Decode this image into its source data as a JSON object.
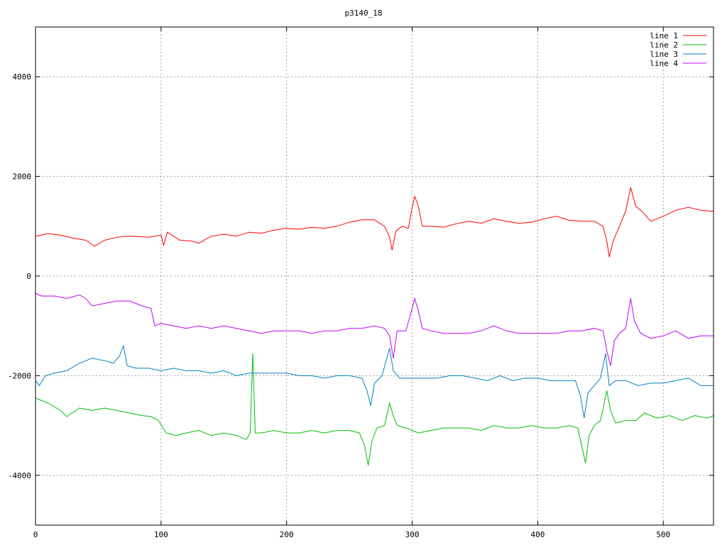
{
  "chart_data": {
    "type": "line",
    "title": "p3140_18",
    "xlabel": "",
    "ylabel": "",
    "xlim": [
      0,
      540
    ],
    "ylim": [
      -5000,
      5000
    ],
    "xticks": [
      0,
      100,
      200,
      300,
      400,
      500
    ],
    "yticks": [
      -4000,
      -2000,
      0,
      2000,
      4000
    ],
    "grid": true,
    "legend_position": "top-right",
    "series": [
      {
        "name": "line 1",
        "color": "#ff0000",
        "points": [
          [
            0,
            800
          ],
          [
            10,
            850
          ],
          [
            20,
            820
          ],
          [
            30,
            760
          ],
          [
            40,
            720
          ],
          [
            47,
            600
          ],
          [
            55,
            720
          ],
          [
            65,
            780
          ],
          [
            75,
            800
          ],
          [
            90,
            780
          ],
          [
            100,
            820
          ],
          [
            102,
            620
          ],
          [
            105,
            880
          ],
          [
            115,
            720
          ],
          [
            125,
            700
          ],
          [
            130,
            660
          ],
          [
            140,
            800
          ],
          [
            150,
            840
          ],
          [
            160,
            800
          ],
          [
            170,
            880
          ],
          [
            180,
            860
          ],
          [
            190,
            920
          ],
          [
            200,
            960
          ],
          [
            210,
            940
          ],
          [
            220,
            980
          ],
          [
            230,
            960
          ],
          [
            240,
            1000
          ],
          [
            250,
            1080
          ],
          [
            260,
            1130
          ],
          [
            270,
            1130
          ],
          [
            278,
            1000
          ],
          [
            282,
            780
          ],
          [
            284,
            520
          ],
          [
            287,
            900
          ],
          [
            292,
            1000
          ],
          [
            297,
            960
          ],
          [
            300,
            1380
          ],
          [
            302,
            1600
          ],
          [
            305,
            1400
          ],
          [
            308,
            1000
          ],
          [
            315,
            1000
          ],
          [
            325,
            980
          ],
          [
            335,
            1050
          ],
          [
            345,
            1100
          ],
          [
            355,
            1060
          ],
          [
            365,
            1150
          ],
          [
            375,
            1100
          ],
          [
            385,
            1060
          ],
          [
            395,
            1080
          ],
          [
            405,
            1150
          ],
          [
            415,
            1200
          ],
          [
            425,
            1120
          ],
          [
            435,
            1100
          ],
          [
            445,
            1100
          ],
          [
            452,
            1000
          ],
          [
            455,
            700
          ],
          [
            457,
            380
          ],
          [
            460,
            700
          ],
          [
            465,
            1000
          ],
          [
            470,
            1300
          ],
          [
            474,
            1780
          ],
          [
            478,
            1400
          ],
          [
            483,
            1300
          ],
          [
            490,
            1100
          ],
          [
            500,
            1200
          ],
          [
            510,
            1320
          ],
          [
            520,
            1380
          ],
          [
            530,
            1320
          ],
          [
            540,
            1300
          ]
        ]
      },
      {
        "name": "line 2",
        "color": "#00c000",
        "points": [
          [
            0,
            -2450
          ],
          [
            10,
            -2550
          ],
          [
            20,
            -2700
          ],
          [
            25,
            -2820
          ],
          [
            35,
            -2650
          ],
          [
            45,
            -2700
          ],
          [
            55,
            -2650
          ],
          [
            65,
            -2700
          ],
          [
            75,
            -2750
          ],
          [
            85,
            -2800
          ],
          [
            92,
            -2820
          ],
          [
            98,
            -2900
          ],
          [
            104,
            -3150
          ],
          [
            112,
            -3200
          ],
          [
            120,
            -3150
          ],
          [
            130,
            -3100
          ],
          [
            140,
            -3200
          ],
          [
            150,
            -3150
          ],
          [
            160,
            -3200
          ],
          [
            168,
            -3280
          ],
          [
            171,
            -3150
          ],
          [
            173,
            -1550
          ],
          [
            175,
            -3150
          ],
          [
            180,
            -3150
          ],
          [
            190,
            -3100
          ],
          [
            200,
            -3150
          ],
          [
            210,
            -3150
          ],
          [
            220,
            -3100
          ],
          [
            230,
            -3150
          ],
          [
            240,
            -3100
          ],
          [
            250,
            -3100
          ],
          [
            258,
            -3150
          ],
          [
            262,
            -3400
          ],
          [
            265,
            -3800
          ],
          [
            268,
            -3300
          ],
          [
            272,
            -3050
          ],
          [
            278,
            -3000
          ],
          [
            282,
            -2550
          ],
          [
            285,
            -2800
          ],
          [
            288,
            -3000
          ],
          [
            295,
            -3050
          ],
          [
            305,
            -3150
          ],
          [
            315,
            -3100
          ],
          [
            325,
            -3050
          ],
          [
            335,
            -3050
          ],
          [
            345,
            -3050
          ],
          [
            355,
            -3100
          ],
          [
            365,
            -3000
          ],
          [
            375,
            -3050
          ],
          [
            385,
            -3050
          ],
          [
            395,
            -3000
          ],
          [
            405,
            -3050
          ],
          [
            415,
            -3050
          ],
          [
            425,
            -3000
          ],
          [
            432,
            -3050
          ],
          [
            435,
            -3400
          ],
          [
            438,
            -3750
          ],
          [
            441,
            -3200
          ],
          [
            445,
            -3000
          ],
          [
            450,
            -2900
          ],
          [
            455,
            -2300
          ],
          [
            458,
            -2700
          ],
          [
            462,
            -2950
          ],
          [
            470,
            -2900
          ],
          [
            478,
            -2900
          ],
          [
            485,
            -2750
          ],
          [
            495,
            -2850
          ],
          [
            505,
            -2800
          ],
          [
            515,
            -2900
          ],
          [
            525,
            -2800
          ],
          [
            535,
            -2850
          ],
          [
            540,
            -2800
          ]
        ]
      },
      {
        "name": "line 3",
        "color": "#0080c0",
        "points": [
          [
            0,
            -2100
          ],
          [
            3,
            -2200
          ],
          [
            8,
            -2000
          ],
          [
            15,
            -1950
          ],
          [
            25,
            -1900
          ],
          [
            35,
            -1750
          ],
          [
            45,
            -1650
          ],
          [
            55,
            -1700
          ],
          [
            62,
            -1750
          ],
          [
            67,
            -1600
          ],
          [
            70,
            -1400
          ],
          [
            73,
            -1800
          ],
          [
            80,
            -1850
          ],
          [
            90,
            -1850
          ],
          [
            100,
            -1900
          ],
          [
            110,
            -1850
          ],
          [
            120,
            -1900
          ],
          [
            130,
            -1900
          ],
          [
            140,
            -1950
          ],
          [
            150,
            -1900
          ],
          [
            160,
            -2000
          ],
          [
            170,
            -1950
          ],
          [
            180,
            -1950
          ],
          [
            190,
            -1950
          ],
          [
            200,
            -1950
          ],
          [
            210,
            -2000
          ],
          [
            220,
            -2000
          ],
          [
            230,
            -2050
          ],
          [
            240,
            -2000
          ],
          [
            250,
            -2000
          ],
          [
            260,
            -2050
          ],
          [
            264,
            -2300
          ],
          [
            267,
            -2600
          ],
          [
            270,
            -2150
          ],
          [
            276,
            -2000
          ],
          [
            282,
            -1450
          ],
          [
            285,
            -1900
          ],
          [
            290,
            -2050
          ],
          [
            300,
            -2050
          ],
          [
            310,
            -2050
          ],
          [
            320,
            -2050
          ],
          [
            330,
            -2000
          ],
          [
            340,
            -2000
          ],
          [
            350,
            -2050
          ],
          [
            360,
            -2100
          ],
          [
            370,
            -2000
          ],
          [
            380,
            -2100
          ],
          [
            390,
            -2050
          ],
          [
            400,
            -2050
          ],
          [
            410,
            -2100
          ],
          [
            420,
            -2100
          ],
          [
            430,
            -2100
          ],
          [
            434,
            -2400
          ],
          [
            437,
            -2850
          ],
          [
            440,
            -2350
          ],
          [
            445,
            -2200
          ],
          [
            450,
            -2050
          ],
          [
            454,
            -1550
          ],
          [
            457,
            -2200
          ],
          [
            462,
            -2100
          ],
          [
            470,
            -2100
          ],
          [
            480,
            -2200
          ],
          [
            490,
            -2150
          ],
          [
            500,
            -2150
          ],
          [
            510,
            -2100
          ],
          [
            520,
            -2050
          ],
          [
            530,
            -2200
          ],
          [
            540,
            -2200
          ]
        ]
      },
      {
        "name": "line 4",
        "color": "#c000ff",
        "points": [
          [
            0,
            -350
          ],
          [
            5,
            -400
          ],
          [
            15,
            -400
          ],
          [
            25,
            -450
          ],
          [
            35,
            -380
          ],
          [
            40,
            -450
          ],
          [
            45,
            -600
          ],
          [
            55,
            -550
          ],
          [
            65,
            -500
          ],
          [
            75,
            -500
          ],
          [
            85,
            -600
          ],
          [
            92,
            -650
          ],
          [
            95,
            -1000
          ],
          [
            100,
            -950
          ],
          [
            110,
            -1000
          ],
          [
            120,
            -1050
          ],
          [
            130,
            -1000
          ],
          [
            140,
            -1050
          ],
          [
            150,
            -1000
          ],
          [
            160,
            -1050
          ],
          [
            170,
            -1100
          ],
          [
            180,
            -1150
          ],
          [
            190,
            -1100
          ],
          [
            200,
            -1100
          ],
          [
            210,
            -1100
          ],
          [
            220,
            -1150
          ],
          [
            230,
            -1100
          ],
          [
            240,
            -1100
          ],
          [
            250,
            -1050
          ],
          [
            260,
            -1050
          ],
          [
            270,
            -1000
          ],
          [
            278,
            -1050
          ],
          [
            282,
            -1200
          ],
          [
            285,
            -1650
          ],
          [
            288,
            -1100
          ],
          [
            295,
            -1100
          ],
          [
            300,
            -650
          ],
          [
            302,
            -450
          ],
          [
            305,
            -700
          ],
          [
            308,
            -1050
          ],
          [
            315,
            -1100
          ],
          [
            325,
            -1150
          ],
          [
            335,
            -1150
          ],
          [
            345,
            -1150
          ],
          [
            355,
            -1100
          ],
          [
            365,
            -1000
          ],
          [
            375,
            -1100
          ],
          [
            385,
            -1150
          ],
          [
            395,
            -1150
          ],
          [
            405,
            -1150
          ],
          [
            415,
            -1150
          ],
          [
            425,
            -1100
          ],
          [
            435,
            -1100
          ],
          [
            445,
            -1050
          ],
          [
            452,
            -1100
          ],
          [
            455,
            -1500
          ],
          [
            458,
            -1800
          ],
          [
            461,
            -1300
          ],
          [
            465,
            -1150
          ],
          [
            470,
            -1050
          ],
          [
            474,
            -450
          ],
          [
            477,
            -900
          ],
          [
            482,
            -1150
          ],
          [
            490,
            -1250
          ],
          [
            500,
            -1200
          ],
          [
            510,
            -1100
          ],
          [
            520,
            -1250
          ],
          [
            530,
            -1200
          ],
          [
            540,
            -1200
          ]
        ]
      }
    ]
  }
}
